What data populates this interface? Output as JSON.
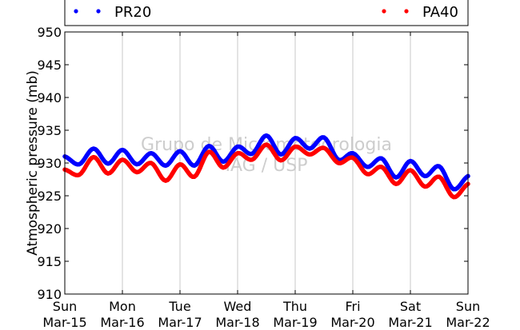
{
  "chart_data": {
    "type": "scatter",
    "ylabel": "Atmospheric pressure (mb)",
    "ylim": [
      910,
      950
    ],
    "yticks": [
      910,
      915,
      920,
      925,
      930,
      935,
      940,
      945,
      950
    ],
    "xlim": [
      "2015-03-15",
      "2015-03-22"
    ],
    "xticks": [
      {
        "day": "Sun",
        "date": "Mar-15"
      },
      {
        "day": "Mon",
        "date": "Mar-16"
      },
      {
        "day": "Tue",
        "date": "Mar-17"
      },
      {
        "day": "Wed",
        "date": "Mar-18"
      },
      {
        "day": "Thu",
        "date": "Mar-19"
      },
      {
        "day": "Fri",
        "date": "Mar-20"
      },
      {
        "day": "Sat",
        "date": "Mar-21"
      },
      {
        "day": "Sun",
        "date": "Mar-22"
      }
    ],
    "grid": "vertical",
    "legend": "top",
    "watermark": [
      "Grupo de Micrometeorologia",
      "IAG / USP"
    ],
    "x": [
      "2015-03-15 00:00",
      "2015-03-15 06:00",
      "2015-03-15 12:00",
      "2015-03-15 18:00",
      "2015-03-16 00:00",
      "2015-03-16 06:00",
      "2015-03-16 12:00",
      "2015-03-16 18:00",
      "2015-03-17 00:00",
      "2015-03-17 06:00",
      "2015-03-17 12:00",
      "2015-03-17 18:00",
      "2015-03-18 00:00",
      "2015-03-18 06:00",
      "2015-03-18 12:00",
      "2015-03-18 18:00",
      "2015-03-19 00:00",
      "2015-03-19 06:00",
      "2015-03-19 12:00",
      "2015-03-19 18:00",
      "2015-03-20 00:00",
      "2015-03-20 06:00",
      "2015-03-20 12:00",
      "2015-03-20 18:00",
      "2015-03-21 00:00",
      "2015-03-21 06:00",
      "2015-03-21 12:00",
      "2015-03-21 18:00",
      "2015-03-22 00:00"
    ],
    "series": [
      {
        "name": "PR20",
        "color": "#0000ff",
        "values": [
          931.0,
          929.8,
          932.2,
          929.9,
          932.0,
          929.8,
          931.5,
          929.6,
          931.8,
          929.6,
          932.6,
          930.2,
          932.5,
          931.4,
          934.2,
          931.3,
          933.8,
          932.2,
          933.9,
          930.5,
          931.5,
          929.4,
          930.7,
          927.8,
          930.3,
          928.0,
          929.5,
          926.0,
          928.0
        ]
      },
      {
        "name": "PA40",
        "color": "#ff0000",
        "values": [
          929.0,
          928.2,
          930.9,
          928.4,
          930.5,
          928.6,
          930.0,
          927.3,
          929.8,
          927.9,
          931.7,
          929.3,
          931.5,
          930.5,
          932.8,
          930.4,
          932.5,
          931.3,
          932.3,
          930.0,
          930.8,
          928.3,
          929.4,
          926.8,
          928.9,
          926.4,
          927.9,
          924.8,
          926.8
        ]
      }
    ]
  }
}
